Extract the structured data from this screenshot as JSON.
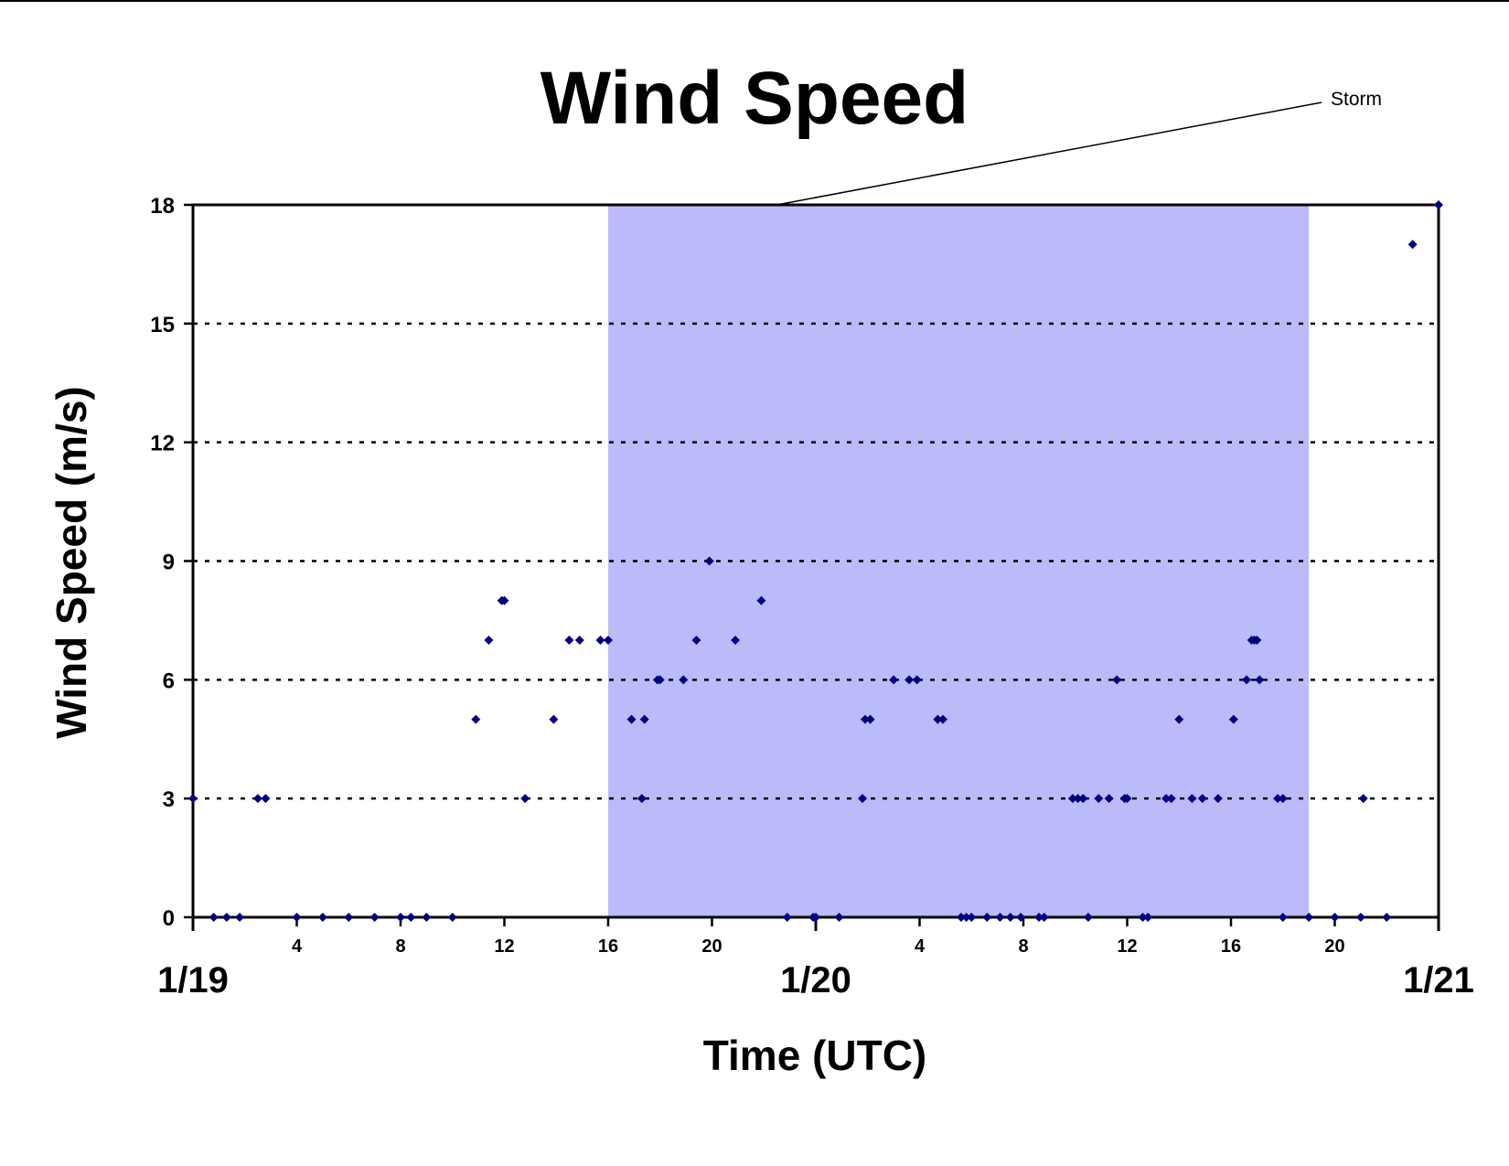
{
  "chart_data": {
    "type": "scatter",
    "title": "Wind Speed",
    "xlabel": "Time (UTC)",
    "ylabel": "Wind Speed (m/s)",
    "x_unit": "hours since 1/19 00:00 UTC",
    "xlim": [
      0,
      48
    ],
    "ylim": [
      0,
      18
    ],
    "y_ticks": [
      0,
      3,
      6,
      9,
      12,
      15,
      18
    ],
    "hour_ticks": [
      {
        "x": 4,
        "label": "4"
      },
      {
        "x": 8,
        "label": "8"
      },
      {
        "x": 12,
        "label": "12"
      },
      {
        "x": 16,
        "label": "16"
      },
      {
        "x": 20,
        "label": "20"
      },
      {
        "x": 28,
        "label": "4"
      },
      {
        "x": 32,
        "label": "8"
      },
      {
        "x": 36,
        "label": "12"
      },
      {
        "x": 40,
        "label": "16"
      },
      {
        "x": 44,
        "label": "20"
      }
    ],
    "date_ticks": [
      {
        "x": 0,
        "label": "1/19"
      },
      {
        "x": 24,
        "label": "1/20"
      },
      {
        "x": 48,
        "label": "1/21"
      }
    ],
    "grid": {
      "y": true,
      "style": "dotted"
    },
    "shaded_region": {
      "x_start": 16,
      "x_end": 43,
      "color": "#bbbbf9",
      "label": "Storm"
    },
    "marker_color": "#000080",
    "series": [
      {
        "points": [
          [
            0.0,
            3
          ],
          [
            0.8,
            0
          ],
          [
            1.3,
            0
          ],
          [
            1.8,
            0
          ],
          [
            2.5,
            3
          ],
          [
            2.8,
            3
          ],
          [
            4.0,
            0
          ],
          [
            5.0,
            0
          ],
          [
            6.0,
            0
          ],
          [
            7.0,
            0
          ],
          [
            8.0,
            0
          ],
          [
            8.4,
            0
          ],
          [
            9.0,
            0
          ],
          [
            10.0,
            0
          ],
          [
            10.9,
            5
          ],
          [
            11.4,
            7
          ],
          [
            11.9,
            8
          ],
          [
            12.0,
            8
          ],
          [
            12.8,
            3
          ],
          [
            13.9,
            5
          ],
          [
            14.5,
            7
          ],
          [
            14.9,
            7
          ],
          [
            15.7,
            7
          ],
          [
            16.0,
            7
          ],
          [
            16.9,
            5
          ],
          [
            17.3,
            3
          ],
          [
            17.4,
            5
          ],
          [
            17.9,
            6
          ],
          [
            18.0,
            6
          ],
          [
            18.9,
            6
          ],
          [
            19.4,
            7
          ],
          [
            19.9,
            9
          ],
          [
            20.9,
            7
          ],
          [
            21.9,
            8
          ],
          [
            22.9,
            0
          ],
          [
            23.9,
            0
          ],
          [
            24.0,
            0
          ],
          [
            24.9,
            0
          ],
          [
            25.8,
            3
          ],
          [
            25.9,
            5
          ],
          [
            26.1,
            5
          ],
          [
            27.0,
            6
          ],
          [
            27.6,
            6
          ],
          [
            27.9,
            6
          ],
          [
            28.7,
            5
          ],
          [
            28.9,
            5
          ],
          [
            29.6,
            0
          ],
          [
            29.8,
            0
          ],
          [
            30.0,
            0
          ],
          [
            30.6,
            0
          ],
          [
            31.1,
            0
          ],
          [
            31.5,
            0
          ],
          [
            31.9,
            0
          ],
          [
            32.6,
            0
          ],
          [
            32.8,
            0
          ],
          [
            33.9,
            3
          ],
          [
            34.1,
            3
          ],
          [
            34.3,
            3
          ],
          [
            34.5,
            0
          ],
          [
            34.9,
            3
          ],
          [
            35.3,
            3
          ],
          [
            35.6,
            6
          ],
          [
            35.9,
            3
          ],
          [
            36.0,
            3
          ],
          [
            36.6,
            0
          ],
          [
            36.8,
            0
          ],
          [
            37.5,
            3
          ],
          [
            37.7,
            3
          ],
          [
            38.0,
            5
          ],
          [
            38.5,
            3
          ],
          [
            38.9,
            3
          ],
          [
            39.5,
            3
          ],
          [
            40.1,
            5
          ],
          [
            40.6,
            6
          ],
          [
            40.8,
            7
          ],
          [
            40.9,
            7
          ],
          [
            41.0,
            7
          ],
          [
            41.1,
            6
          ],
          [
            41.8,
            3
          ],
          [
            42.0,
            3
          ],
          [
            42.0,
            0
          ],
          [
            43.0,
            0
          ],
          [
            44.0,
            0
          ],
          [
            45.0,
            0
          ],
          [
            45.1,
            3
          ],
          [
            46.0,
            0
          ],
          [
            47.0,
            17
          ],
          [
            48.0,
            18
          ]
        ]
      }
    ]
  }
}
